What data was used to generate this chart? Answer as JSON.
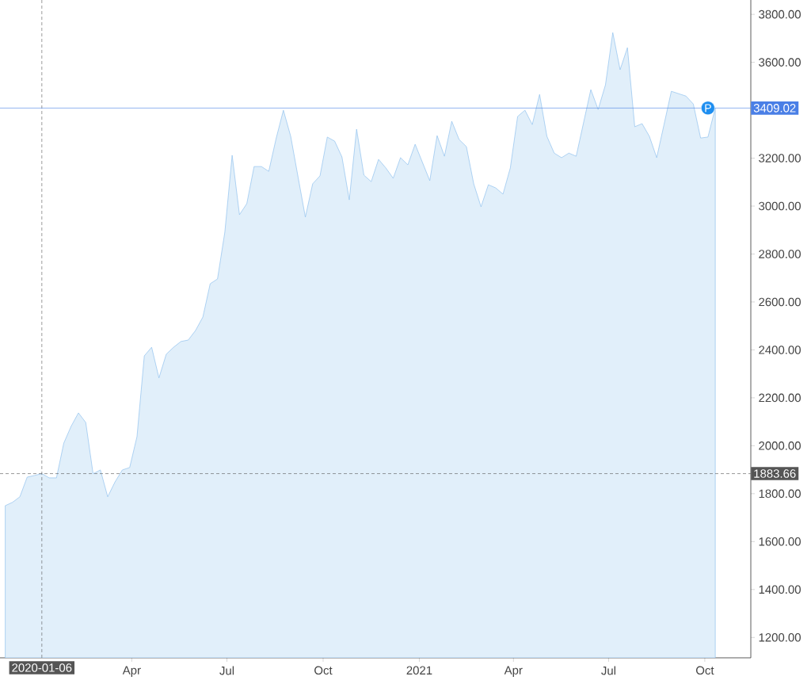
{
  "chart_data": {
    "type": "area",
    "color": "#e1effa",
    "x": [
      "2019-12-02",
      "2019-12-09",
      "2019-12-16",
      "2019-12-23",
      "2019-12-30",
      "2020-01-06",
      "2020-01-13",
      "2020-01-20",
      "2020-01-27",
      "2020-02-03",
      "2020-02-10",
      "2020-02-17",
      "2020-02-24",
      "2020-03-02",
      "2020-03-09",
      "2020-03-16",
      "2020-03-23",
      "2020-03-30",
      "2020-04-06",
      "2020-04-13",
      "2020-04-20",
      "2020-04-27",
      "2020-05-04",
      "2020-05-11",
      "2020-05-18",
      "2020-05-25",
      "2020-06-01",
      "2020-06-08",
      "2020-06-15",
      "2020-06-22",
      "2020-06-29",
      "2020-07-06",
      "2020-07-13",
      "2020-07-20",
      "2020-07-27",
      "2020-08-03",
      "2020-08-10",
      "2020-08-17",
      "2020-08-24",
      "2020-08-31",
      "2020-09-07",
      "2020-09-14",
      "2020-09-21",
      "2020-09-28",
      "2020-10-05",
      "2020-10-12",
      "2020-10-19",
      "2020-10-26",
      "2020-11-02",
      "2020-11-09",
      "2020-11-16",
      "2020-11-23",
      "2020-11-30",
      "2020-12-07",
      "2020-12-14",
      "2020-12-21",
      "2020-12-28",
      "2021-01-04",
      "2021-01-11",
      "2021-01-18",
      "2021-01-25",
      "2021-02-01",
      "2021-02-08",
      "2021-02-15",
      "2021-02-22",
      "2021-03-01",
      "2021-03-08",
      "2021-03-15",
      "2021-03-22",
      "2021-03-29",
      "2021-04-05",
      "2021-04-12",
      "2021-04-19",
      "2021-04-26",
      "2021-05-03",
      "2021-05-10",
      "2021-05-17",
      "2021-05-24",
      "2021-05-31",
      "2021-06-07",
      "2021-06-14",
      "2021-06-21",
      "2021-06-28",
      "2021-07-05",
      "2021-07-12",
      "2021-07-19",
      "2021-07-26",
      "2021-08-02",
      "2021-08-09",
      "2021-08-16",
      "2021-08-23",
      "2021-08-30",
      "2021-09-06",
      "2021-09-13",
      "2021-09-20",
      "2021-09-27",
      "2021-10-04",
      "2021-10-11"
    ],
    "values": [
      1750,
      1764,
      1787,
      1869,
      1876,
      1883.66,
      1866,
      1866,
      2011,
      2081,
      2137,
      2097,
      1883,
      1899,
      1787,
      1849,
      1899,
      1909,
      2038,
      2375,
      2411,
      2283,
      2382,
      2411,
      2435,
      2441,
      2481,
      2537,
      2676,
      2696,
      2891,
      3212,
      2964,
      3010,
      3165,
      3165,
      3145,
      3281,
      3400,
      3291,
      3122,
      2954,
      3093,
      3126,
      3288,
      3271,
      3205,
      3026,
      3321,
      3129,
      3102,
      3195,
      3159,
      3116,
      3202,
      3172,
      3258,
      3182,
      3106,
      3294,
      3208,
      3354,
      3278,
      3248,
      3093,
      2997,
      3089,
      3076,
      3050,
      3159,
      3374,
      3400,
      3340,
      3466,
      3291,
      3221,
      3202,
      3221,
      3208,
      3347,
      3486,
      3403,
      3506,
      3724,
      3569,
      3661,
      3331,
      3344,
      3291,
      3202,
      3340,
      3479,
      3469,
      3459,
      3426,
      3284,
      3288,
      3409.02
    ],
    "xlim": [
      "2019-11-27",
      "2021-11-14"
    ],
    "ylim": [
      1115,
      3860
    ],
    "xticks": [
      {
        "value": "2020-04-01",
        "label": "Apr"
      },
      {
        "value": "2020-07-01",
        "label": "Jul"
      },
      {
        "value": "2020-10-01",
        "label": "Oct"
      },
      {
        "value": "2021-01-01",
        "label": "2021"
      },
      {
        "value": "2021-04-01",
        "label": "Apr"
      },
      {
        "value": "2021-07-01",
        "label": "Jul"
      },
      {
        "value": "2021-10-01",
        "label": "Oct"
      }
    ],
    "yticks": [
      {
        "value": 1200,
        "label": "1200.00"
      },
      {
        "value": 1400,
        "label": "1400.00"
      },
      {
        "value": 1600,
        "label": "1600.00"
      },
      {
        "value": 1800,
        "label": "1800.00"
      },
      {
        "value": 2000,
        "label": "2000.00"
      },
      {
        "value": 2200,
        "label": "2200.00"
      },
      {
        "value": 2400,
        "label": "2400.00"
      },
      {
        "value": 2600,
        "label": "2600.00"
      },
      {
        "value": 2800,
        "label": "2800.00"
      },
      {
        "value": 3000,
        "label": "3000.00"
      },
      {
        "value": 3200,
        "label": "3200.00"
      },
      {
        "value": 3400,
        "label": null
      },
      {
        "value": 3600,
        "label": "3600.00"
      },
      {
        "value": 3800,
        "label": "3800.00"
      }
    ],
    "ref_lines": [
      {
        "axis": "x",
        "value": "2020-01-06",
        "label": "2020-01-06",
        "color": "#555555",
        "line_style": "dashed"
      },
      {
        "axis": "y",
        "value": 1883.66,
        "label": "1883.66",
        "color": "#555555",
        "line_style": "dashed"
      },
      {
        "axis": "y",
        "value": 3409.02,
        "label": "3409.02",
        "color": "#4a7fe6",
        "line_style": "solid"
      }
    ],
    "annotations": [
      {
        "text": "P",
        "x": "2021-10-04",
        "y": 3409.02
      }
    ]
  }
}
